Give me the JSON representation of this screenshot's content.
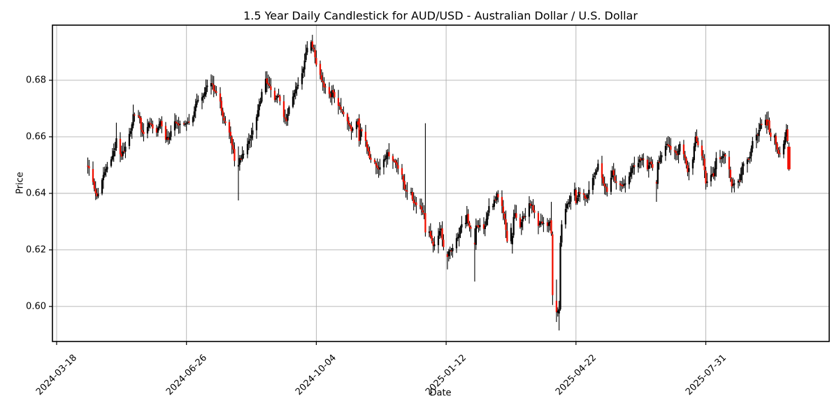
{
  "chart_data": {
    "type": "candlestick",
    "title": "1.5 Year Daily Candlestick for AUD/USD - Australian Dollar / U.S. Dollar",
    "xlabel": "Date",
    "ylabel": "Price",
    "series_name": "AUD/USD",
    "grid": true,
    "legend": "none",
    "x_tick_labels": [
      "2024-03-18",
      "2024-06-26",
      "2024-10-04",
      "2025-01-12",
      "2025-04-22",
      "2025-07-31"
    ],
    "y_ticks": [
      0.6,
      0.62,
      0.64,
      0.66,
      0.68
    ],
    "y_tick_labels": [
      "0.60",
      "0.62",
      "0.64",
      "0.66",
      "0.68"
    ],
    "ylim": [
      0.5876,
      0.6995
    ],
    "xlim_dates": [
      "2024-03-15",
      "2025-11-03"
    ],
    "colors": {
      "up_candle": "#000000",
      "down_candle": "#f01000",
      "grid": "#b0b0b0",
      "axis": "#000000",
      "background": "#ffffff"
    },
    "close_anchors": [
      [
        "2024-04-11",
        0.6495
      ],
      [
        "2024-04-15",
        0.644
      ],
      [
        "2024-04-18",
        0.639
      ],
      [
        "2024-04-23",
        0.6465
      ],
      [
        "2024-04-29",
        0.652
      ],
      [
        "2024-05-02",
        0.656
      ],
      [
        "2024-05-03",
        0.6595
      ],
      [
        "2024-05-07",
        0.653
      ],
      [
        "2024-05-10",
        0.6565
      ],
      [
        "2024-05-14",
        0.662
      ],
      [
        "2024-05-16",
        0.668
      ],
      [
        "2024-05-21",
        0.6665
      ],
      [
        "2024-05-22",
        0.6625
      ],
      [
        "2024-05-24",
        0.661
      ],
      [
        "2024-05-28",
        0.665
      ],
      [
        "2024-06-03",
        0.6615
      ],
      [
        "2024-06-06",
        0.6655
      ],
      [
        "2024-06-10",
        0.659
      ],
      [
        "2024-06-13",
        0.66
      ],
      [
        "2024-06-17",
        0.6655
      ],
      [
        "2024-06-20",
        0.664
      ],
      [
        "2024-06-24",
        0.6645
      ],
      [
        "2024-06-26",
        0.6648
      ],
      [
        "2024-07-01",
        0.667
      ],
      [
        "2024-07-03",
        0.6715
      ],
      [
        "2024-07-08",
        0.674
      ],
      [
        "2024-07-11",
        0.6775
      ],
      [
        "2024-07-15",
        0.679
      ],
      [
        "2024-07-18",
        0.676
      ],
      [
        "2024-07-22",
        0.6725
      ],
      [
        "2024-07-24",
        0.667
      ],
      [
        "2024-07-29",
        0.6615
      ],
      [
        "2024-08-01",
        0.6555
      ],
      [
        "2024-08-02",
        0.6515
      ],
      [
        "2024-08-07",
        0.652
      ],
      [
        "2024-08-12",
        0.6575
      ],
      [
        "2024-08-15",
        0.6605
      ],
      [
        "2024-08-19",
        0.667
      ],
      [
        "2024-08-21",
        0.6715
      ],
      [
        "2024-08-26",
        0.6805
      ],
      [
        "2024-08-29",
        0.678
      ],
      [
        "2024-09-02",
        0.673
      ],
      [
        "2024-09-05",
        0.6745
      ],
      [
        "2024-09-09",
        0.667
      ],
      [
        "2024-09-11",
        0.6655
      ],
      [
        "2024-09-13",
        0.6705
      ],
      [
        "2024-09-17",
        0.6755
      ],
      [
        "2024-09-23",
        0.6825
      ],
      [
        "2024-09-25",
        0.687
      ],
      [
        "2024-09-27",
        0.6915
      ],
      [
        "2024-10-02",
        0.691
      ],
      [
        "2024-10-04",
        0.6855
      ],
      [
        "2024-10-08",
        0.68
      ],
      [
        "2024-10-11",
        0.6775
      ],
      [
        "2024-10-15",
        0.674
      ],
      [
        "2024-10-16",
        0.6765
      ],
      [
        "2024-10-21",
        0.671
      ],
      [
        "2024-10-23",
        0.6695
      ],
      [
        "2024-10-28",
        0.6655
      ],
      [
        "2024-10-31",
        0.662
      ],
      [
        "2024-11-04",
        0.6655
      ],
      [
        "2024-11-07",
        0.6625
      ],
      [
        "2024-11-11",
        0.6585
      ],
      [
        "2024-11-14",
        0.6525
      ],
      [
        "2024-11-18",
        0.651
      ],
      [
        "2024-11-21",
        0.6485
      ],
      [
        "2024-11-25",
        0.652
      ],
      [
        "2024-11-28",
        0.6545
      ],
      [
        "2024-12-02",
        0.6515
      ],
      [
        "2024-12-05",
        0.65
      ],
      [
        "2024-12-09",
        0.6465
      ],
      [
        "2024-12-11",
        0.6415
      ],
      [
        "2024-12-16",
        0.6405
      ],
      [
        "2024-12-18",
        0.6365
      ],
      [
        "2024-12-23",
        0.6355
      ],
      [
        "2024-12-26",
        0.633
      ],
      [
        "2024-12-30",
        0.6265
      ],
      [
        "2025-01-02",
        0.6215
      ],
      [
        "2025-01-06",
        0.625
      ],
      [
        "2025-01-08",
        0.6275
      ],
      [
        "2025-01-10",
        0.621
      ],
      [
        "2025-01-16",
        0.6195
      ],
      [
        "2025-01-21",
        0.6245
      ],
      [
        "2025-01-23",
        0.628
      ],
      [
        "2025-01-27",
        0.6295
      ],
      [
        "2025-01-28",
        0.6325
      ],
      [
        "2025-01-30",
        0.628
      ],
      [
        "2025-01-31",
        0.6275
      ],
      [
        "2025-02-05",
        0.6285
      ],
      [
        "2025-02-10",
        0.6275
      ],
      [
        "2025-02-12",
        0.631
      ],
      [
        "2025-02-14",
        0.6355
      ],
      [
        "2025-02-17",
        0.6355
      ],
      [
        "2025-02-20",
        0.64
      ],
      [
        "2025-02-24",
        0.6355
      ],
      [
        "2025-02-26",
        0.631
      ],
      [
        "2025-02-28",
        0.623
      ],
      [
        "2025-03-06",
        0.633
      ],
      [
        "2025-03-10",
        0.628
      ],
      [
        "2025-03-12",
        0.632
      ],
      [
        "2025-03-14",
        0.632
      ],
      [
        "2025-03-17",
        0.6365
      ],
      [
        "2025-03-19",
        0.636
      ],
      [
        "2025-03-24",
        0.6285
      ],
      [
        "2025-03-26",
        0.63
      ],
      [
        "2025-03-28",
        0.6295
      ],
      [
        "2025-03-31",
        0.6285
      ],
      [
        "2025-04-02",
        0.63
      ],
      [
        "2025-04-08",
        0.5985
      ],
      [
        "2025-04-11",
        0.629
      ],
      [
        "2025-04-14",
        0.6345
      ],
      [
        "2025-04-16",
        0.6365
      ],
      [
        "2025-04-21",
        0.6415
      ],
      [
        "2025-04-22",
        0.6365
      ],
      [
        "2025-04-24",
        0.6405
      ],
      [
        "2025-04-28",
        0.6395
      ],
      [
        "2025-04-30",
        0.638
      ],
      [
        "2025-05-01",
        0.6395
      ],
      [
        "2025-05-05",
        0.6455
      ],
      [
        "2025-05-07",
        0.6475
      ],
      [
        "2025-05-09",
        0.6505
      ],
      [
        "2025-05-12",
        0.6455
      ],
      [
        "2025-05-14",
        0.6425
      ],
      [
        "2025-05-16",
        0.6405
      ],
      [
        "2025-05-19",
        0.6455
      ],
      [
        "2025-05-20",
        0.648
      ],
      [
        "2025-05-22",
        0.6445
      ],
      [
        "2025-05-26",
        0.643
      ],
      [
        "2025-05-28",
        0.6425
      ],
      [
        "2025-05-30",
        0.6435
      ],
      [
        "2025-06-02",
        0.646
      ],
      [
        "2025-06-04",
        0.649
      ],
      [
        "2025-06-06",
        0.6495
      ],
      [
        "2025-06-10",
        0.652
      ],
      [
        "2025-06-12",
        0.6525
      ],
      [
        "2025-06-16",
        0.6485
      ],
      [
        "2025-06-18",
        0.651
      ],
      [
        "2025-06-20",
        0.649
      ],
      [
        "2025-06-25",
        0.651
      ],
      [
        "2025-06-27",
        0.6535
      ],
      [
        "2025-07-01",
        0.6575
      ],
      [
        "2025-07-03",
        0.6565
      ],
      [
        "2025-07-07",
        0.655
      ],
      [
        "2025-07-09",
        0.6535
      ],
      [
        "2025-07-11",
        0.6575
      ],
      [
        "2025-07-15",
        0.6525
      ],
      [
        "2025-07-17",
        0.6475
      ],
      [
        "2025-07-21",
        0.652
      ],
      [
        "2025-07-23",
        0.66
      ],
      [
        "2025-07-25",
        0.657
      ],
      [
        "2025-07-29",
        0.6525
      ],
      [
        "2025-07-31",
        0.6435
      ],
      [
        "2025-08-04",
        0.6465
      ],
      [
        "2025-08-06",
        0.646
      ],
      [
        "2025-08-08",
        0.6525
      ],
      [
        "2025-08-12",
        0.6525
      ],
      [
        "2025-08-14",
        0.654
      ],
      [
        "2025-08-18",
        0.6485
      ],
      [
        "2025-08-20",
        0.6425
      ],
      [
        "2025-08-22",
        0.6435
      ],
      [
        "2025-08-26",
        0.6445
      ],
      [
        "2025-08-28",
        0.6495
      ],
      [
        "2025-09-01",
        0.652
      ],
      [
        "2025-09-03",
        0.653
      ],
      [
        "2025-09-05",
        0.6585
      ],
      [
        "2025-09-09",
        0.6605
      ],
      [
        "2025-09-11",
        0.6645
      ],
      [
        "2025-09-15",
        0.666
      ],
      [
        "2025-09-19",
        0.66
      ],
      [
        "2025-09-22",
        0.6605
      ],
      [
        "2025-09-24",
        0.6555
      ],
      [
        "2025-09-26",
        0.654
      ],
      [
        "2025-09-29",
        0.6575
      ],
      [
        "2025-09-30",
        0.66
      ],
      [
        "2025-10-02",
        0.6585
      ]
    ],
    "special_candles": [
      {
        "date": "2024-05-03",
        "o": 0.656,
        "h": 0.665,
        "l": 0.655,
        "c": 0.6595
      },
      {
        "date": "2024-05-16",
        "o": 0.664,
        "h": 0.6714,
        "l": 0.663,
        "c": 0.668
      },
      {
        "date": "2024-07-11",
        "o": 0.675,
        "h": 0.6803,
        "l": 0.674,
        "c": 0.6775
      },
      {
        "date": "2024-08-05",
        "o": 0.6495,
        "h": 0.6566,
        "l": 0.6375,
        "c": 0.65
      },
      {
        "date": "2024-09-30",
        "o": 0.6905,
        "h": 0.6942,
        "l": 0.6895,
        "c": 0.6935
      },
      {
        "date": "2024-11-06",
        "o": 0.6665,
        "h": 0.668,
        "l": 0.6565,
        "c": 0.6585
      },
      {
        "date": "2024-12-27",
        "o": 0.633,
        "h": 0.6648,
        "l": 0.6247,
        "c": 0.6262
      },
      {
        "date": "2025-01-13",
        "o": 0.6185,
        "h": 0.6195,
        "l": 0.6131,
        "c": 0.6175
      },
      {
        "date": "2025-02-03",
        "o": 0.6225,
        "h": 0.6276,
        "l": 0.6088,
        "c": 0.622
      },
      {
        "date": "2025-03-04",
        "o": 0.622,
        "h": 0.626,
        "l": 0.6187,
        "c": 0.625
      },
      {
        "date": "2025-04-03",
        "o": 0.6305,
        "h": 0.637,
        "l": 0.625,
        "c": 0.6258
      },
      {
        "date": "2025-04-04",
        "o": 0.6255,
        "h": 0.6265,
        "l": 0.6005,
        "c": 0.604
      },
      {
        "date": "2025-04-07",
        "o": 0.602,
        "h": 0.6095,
        "l": 0.5945,
        "c": 0.598
      },
      {
        "date": "2025-04-09",
        "o": 0.5975,
        "h": 0.602,
        "l": 0.5915,
        "c": 0.599
      },
      {
        "date": "2025-04-10",
        "o": 0.599,
        "h": 0.625,
        "l": 0.5985,
        "c": 0.6225
      },
      {
        "date": "2025-06-23",
        "o": 0.644,
        "h": 0.6447,
        "l": 0.637,
        "c": 0.6435
      },
      {
        "date": "2025-09-17",
        "o": 0.666,
        "h": 0.669,
        "l": 0.6625,
        "c": 0.6655
      },
      {
        "date": "2025-10-01",
        "o": 0.66,
        "h": 0.6645,
        "l": 0.658,
        "c": 0.6625
      },
      {
        "date": "2025-10-03",
        "o": 0.6565,
        "h": 0.658,
        "l": 0.648,
        "c": 0.6485,
        "wide": true
      }
    ]
  }
}
